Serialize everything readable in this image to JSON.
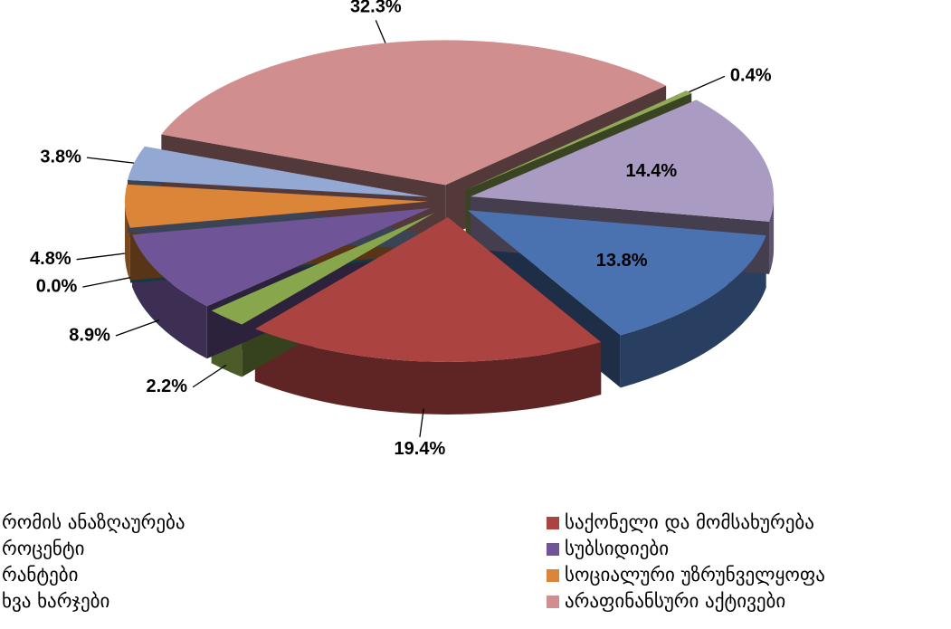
{
  "chart_data": {
    "type": "pie",
    "categories": [
      "რომის ანაზღაურება",
      "საქონელი და მომსახურება",
      "როცენტი",
      "სუბსიდიები",
      "რანტები",
      "სოციალური უზრუნველყოფა",
      "ხვა ხარჯები",
      "არაფინანსური აქტივები",
      null,
      null
    ],
    "values": [
      13.8,
      19.4,
      2.2,
      8.9,
      0.0,
      4.8,
      3.8,
      32.3,
      0.4,
      14.4
    ],
    "value_labels": [
      "13.8%",
      "19.4%",
      "2.2%",
      "8.9%",
      "0.0%",
      "4.8%",
      "3.8%",
      "32.3%",
      "0.4%",
      "14.4%"
    ],
    "colors": [
      "#4a72b0",
      "#ab4341",
      "#88a64c",
      "#6f5497",
      "#2f8ea8",
      "#da8537",
      "#93a9d4",
      "#d08e8e",
      "#90aa58",
      "#a99bc2"
    ],
    "legend": "bottom"
  }
}
